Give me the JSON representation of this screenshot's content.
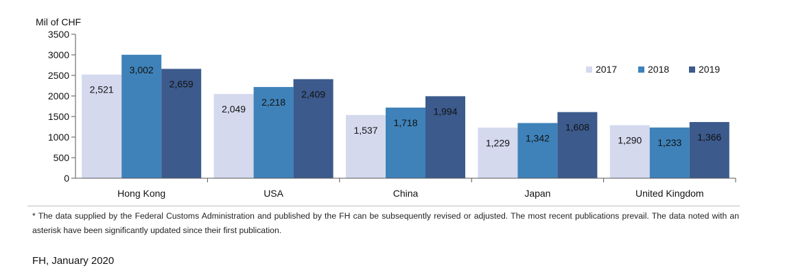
{
  "chart_data": {
    "type": "bar",
    "ylabel": "Mil of CHF",
    "ylim": [
      0,
      3500
    ],
    "yticks": [
      0,
      500,
      1000,
      1500,
      2000,
      2500,
      3000,
      3500
    ],
    "ytick_labels": [
      "0",
      "500",
      "1000",
      "1500",
      "2000",
      "2500",
      "3000",
      "3500"
    ],
    "categories": [
      "Hong Kong",
      "USA",
      "China",
      "Japan",
      "United Kingdom"
    ],
    "series": [
      {
        "name": "2017",
        "color": "#d4d9ee",
        "values": [
          2521,
          2049,
          1537,
          1229,
          1290
        ],
        "labels": [
          "2,521",
          "2,049",
          "1,537",
          "1,229",
          "1,290"
        ]
      },
      {
        "name": "2018",
        "color": "#3f82b9",
        "values": [
          3002,
          2218,
          1718,
          1342,
          1233
        ],
        "labels": [
          "3,002",
          "2,218",
          "1,718",
          "1,342",
          "1,233"
        ]
      },
      {
        "name": "2019",
        "color": "#3c5a8c",
        "values": [
          2659,
          2409,
          1994,
          1608,
          1366
        ],
        "labels": [
          "2,659",
          "2,409",
          "1,994",
          "1,608",
          "1,366"
        ]
      }
    ],
    "legend": "top-right",
    "grid": false
  },
  "footnote": "* The data supplied by the Federal Customs Administration and published by the FH can be subsequently revised or adjusted. The most recent publications prevail. The data noted with an asterisk have been significantly updated since their first publication.",
  "source": "FH, January 2020"
}
